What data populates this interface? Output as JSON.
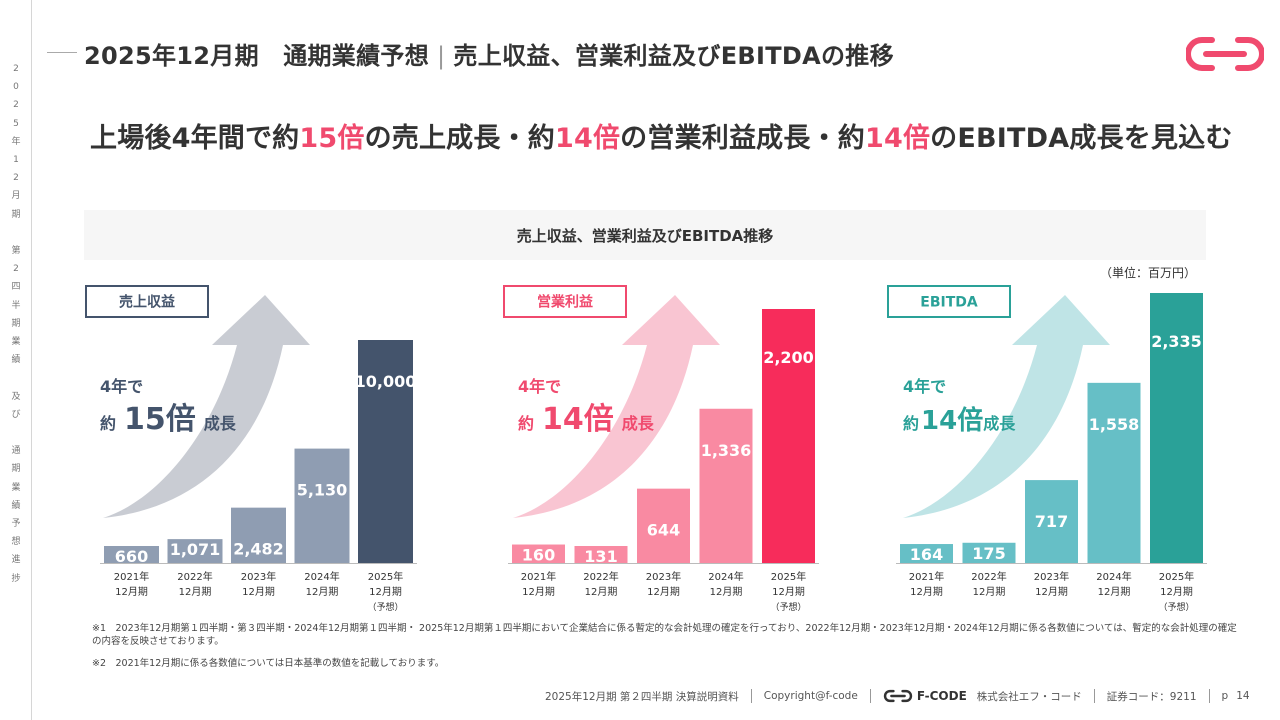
{
  "rail": {
    "chars": [
      "2",
      "0",
      "2",
      "5",
      "年",
      "1",
      "2",
      "月",
      "期",
      "",
      "第",
      "2",
      "四",
      "半",
      "期",
      "業",
      "績",
      "",
      "及",
      "び",
      "",
      "通",
      "期",
      "業",
      "績",
      "予",
      "想",
      "進",
      "捗"
    ]
  },
  "header": {
    "title": "2025年12月期　通期業績予想",
    "subtitle": "売上収益、営業利益及びEBITDAの推移",
    "sep": "|"
  },
  "headline": {
    "p1": "上場後4年間で約",
    "h1": "15倍",
    "p2": "の売上成長・約",
    "h2": "14倍",
    "p3": "の営業利益成長・約",
    "h3": "14倍",
    "p4": "のEBITDA成長を見込む"
  },
  "banner": "売上収益、営業利益及びEBITDA推移",
  "unit": "（単位：百万円）",
  "colors": {
    "accent": "#f04a6e",
    "navy": "#44546c",
    "pink": "#f72c5b",
    "teal": "#2aa198"
  },
  "chart_data": [
    {
      "type": "bar",
      "legend": "売上収益",
      "categories": [
        "2021年12月期",
        "2022年12月期",
        "2023年12月期",
        "2024年12月期",
        "2025年12月期（予想）"
      ],
      "cat_lines": [
        [
          "2021年",
          "12月期"
        ],
        [
          "2022年",
          "12月期"
        ],
        [
          "2023年",
          "12月期"
        ],
        [
          "2024年",
          "12月期"
        ],
        [
          "2025年",
          "12月期",
          "（予想）"
        ]
      ],
      "values": [
        660,
        1071,
        2482,
        5130,
        10000
      ],
      "labels": [
        "660",
        "1,071",
        "2,482",
        "5,130",
        "10,000"
      ],
      "growth": {
        "l1": "4年で",
        "pre": "約",
        "big": "15倍",
        "post": "成長"
      },
      "colors": [
        "#8f9db2",
        "#8f9db2",
        "#8f9db2",
        "#8f9db2",
        "#44546c"
      ],
      "theme": "#44546c",
      "arrow": "#c9ccd3"
    },
    {
      "type": "bar",
      "legend": "営業利益",
      "categories": [
        "2021年12月期",
        "2022年12月期",
        "2023年12月期",
        "2024年12月期",
        "2025年12月期（予想）"
      ],
      "cat_lines": [
        [
          "2021年",
          "12月期"
        ],
        [
          "2022年",
          "12月期"
        ],
        [
          "2023年",
          "12月期"
        ],
        [
          "2024年",
          "12月期"
        ],
        [
          "2025年",
          "12月期",
          "（予想）"
        ]
      ],
      "values": [
        160,
        131,
        644,
        1336,
        2200
      ],
      "labels": [
        "160",
        "131",
        "644",
        "1,336",
        "2,200"
      ],
      "growth": {
        "l1": "4年で",
        "pre": "約",
        "big": "14倍",
        "post": "成長"
      },
      "colors": [
        "#f98aa2",
        "#f98aa2",
        "#f98aa2",
        "#f98aa2",
        "#f72c5b"
      ],
      "theme": "#f04a6e",
      "arrow": "#f9c5d2"
    },
    {
      "type": "bar",
      "legend": "EBITDA",
      "categories": [
        "2021年12月期",
        "2022年12月期",
        "2023年12月期",
        "2024年12月期",
        "2025年12月期（予想）"
      ],
      "cat_lines": [
        [
          "2021年",
          "12月期"
        ],
        [
          "2022年",
          "12月期"
        ],
        [
          "2023年",
          "12月期"
        ],
        [
          "2024年",
          "12月期"
        ],
        [
          "2025年",
          "12月期",
          "（予想）"
        ]
      ],
      "values": [
        164,
        175,
        717,
        1558,
        2335
      ],
      "labels": [
        "164",
        "175",
        "717",
        "1,558",
        "2,335"
      ],
      "growth": {
        "l1": "4年で",
        "pre": "約",
        "big": "14倍",
        "post": "成長"
      },
      "colors": [
        "#66bfc6",
        "#66bfc6",
        "#66bfc6",
        "#66bfc6",
        "#2aa198"
      ],
      "theme": "#2aa198",
      "arrow": "#bfe4e6"
    }
  ],
  "notes": {
    "n1": "※1　2023年12月期第１四半期・第３四半期・2024年12月期第１四半期・ 2025年12月期第１四半期において企業結合に係る暫定的な会計処理の確定を行っており、2022年12月期・2023年12月期・2024年12月期に係る各数値については、暫定的な会計処理の確定の内容を反映させております。",
    "n2": "※2　2021年12月期に係る各数値については日本基準の数値を記載しております。"
  },
  "footer": {
    "doc": "2025年12月期 第２四半期 決算説明資料",
    "copyright": "Copyright@f-code",
    "brand": "F-CODE",
    "company": "株式会社エフ・コード",
    "code": "証券コード：9211",
    "page_prefix": "p",
    "page": "14"
  }
}
